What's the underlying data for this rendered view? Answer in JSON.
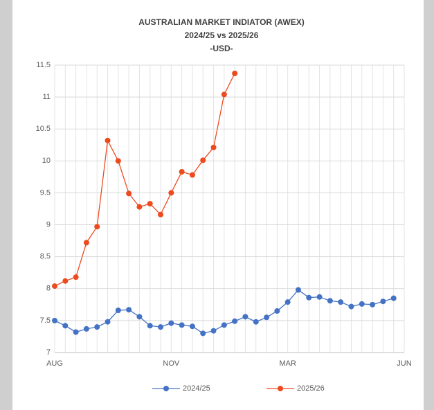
{
  "chart_data": {
    "type": "line",
    "title": "AUSTRALIAN MARKET INDIATOR (AWEX)",
    "subtitle": [
      "2024/25 vs 2025/26",
      "-USD-"
    ],
    "categories": [
      "AUG",
      null,
      null,
      null,
      null,
      null,
      null,
      null,
      null,
      null,
      null,
      "NOV",
      null,
      null,
      null,
      null,
      null,
      null,
      null,
      null,
      null,
      null,
      "MAR",
      null,
      null,
      null,
      null,
      null,
      null,
      null,
      null,
      null,
      null,
      "JUN"
    ],
    "series": [
      {
        "name": "2024/25",
        "color": "#4472c4",
        "values": [
          7.5,
          7.42,
          7.32,
          7.37,
          7.4,
          7.48,
          7.66,
          7.67,
          7.56,
          7.42,
          7.4,
          7.46,
          7.43,
          7.41,
          7.3,
          7.34,
          7.43,
          7.49,
          7.56,
          7.48,
          7.55,
          7.65,
          7.79,
          7.98,
          7.86,
          7.87,
          7.81,
          7.79,
          7.72,
          7.76,
          7.75,
          7.8,
          7.85,
          null
        ]
      },
      {
        "name": "2025/26",
        "color": "#ed4a1f",
        "values": [
          8.04,
          8.12,
          8.18,
          8.72,
          8.97,
          10.32,
          10.0,
          9.49,
          9.28,
          9.33,
          9.16,
          9.5,
          9.83,
          9.78,
          10.01,
          10.21,
          11.04,
          11.37,
          null,
          null,
          null,
          null,
          null,
          null,
          null,
          null,
          null,
          null,
          null,
          null,
          null,
          null,
          null,
          null
        ]
      }
    ],
    "ylim": [
      7,
      11.5
    ],
    "yticks": [
      7,
      7.5,
      8,
      8.5,
      9,
      9.5,
      10,
      10.5,
      11,
      11.5
    ],
    "grid": true,
    "legend": "bottom"
  }
}
